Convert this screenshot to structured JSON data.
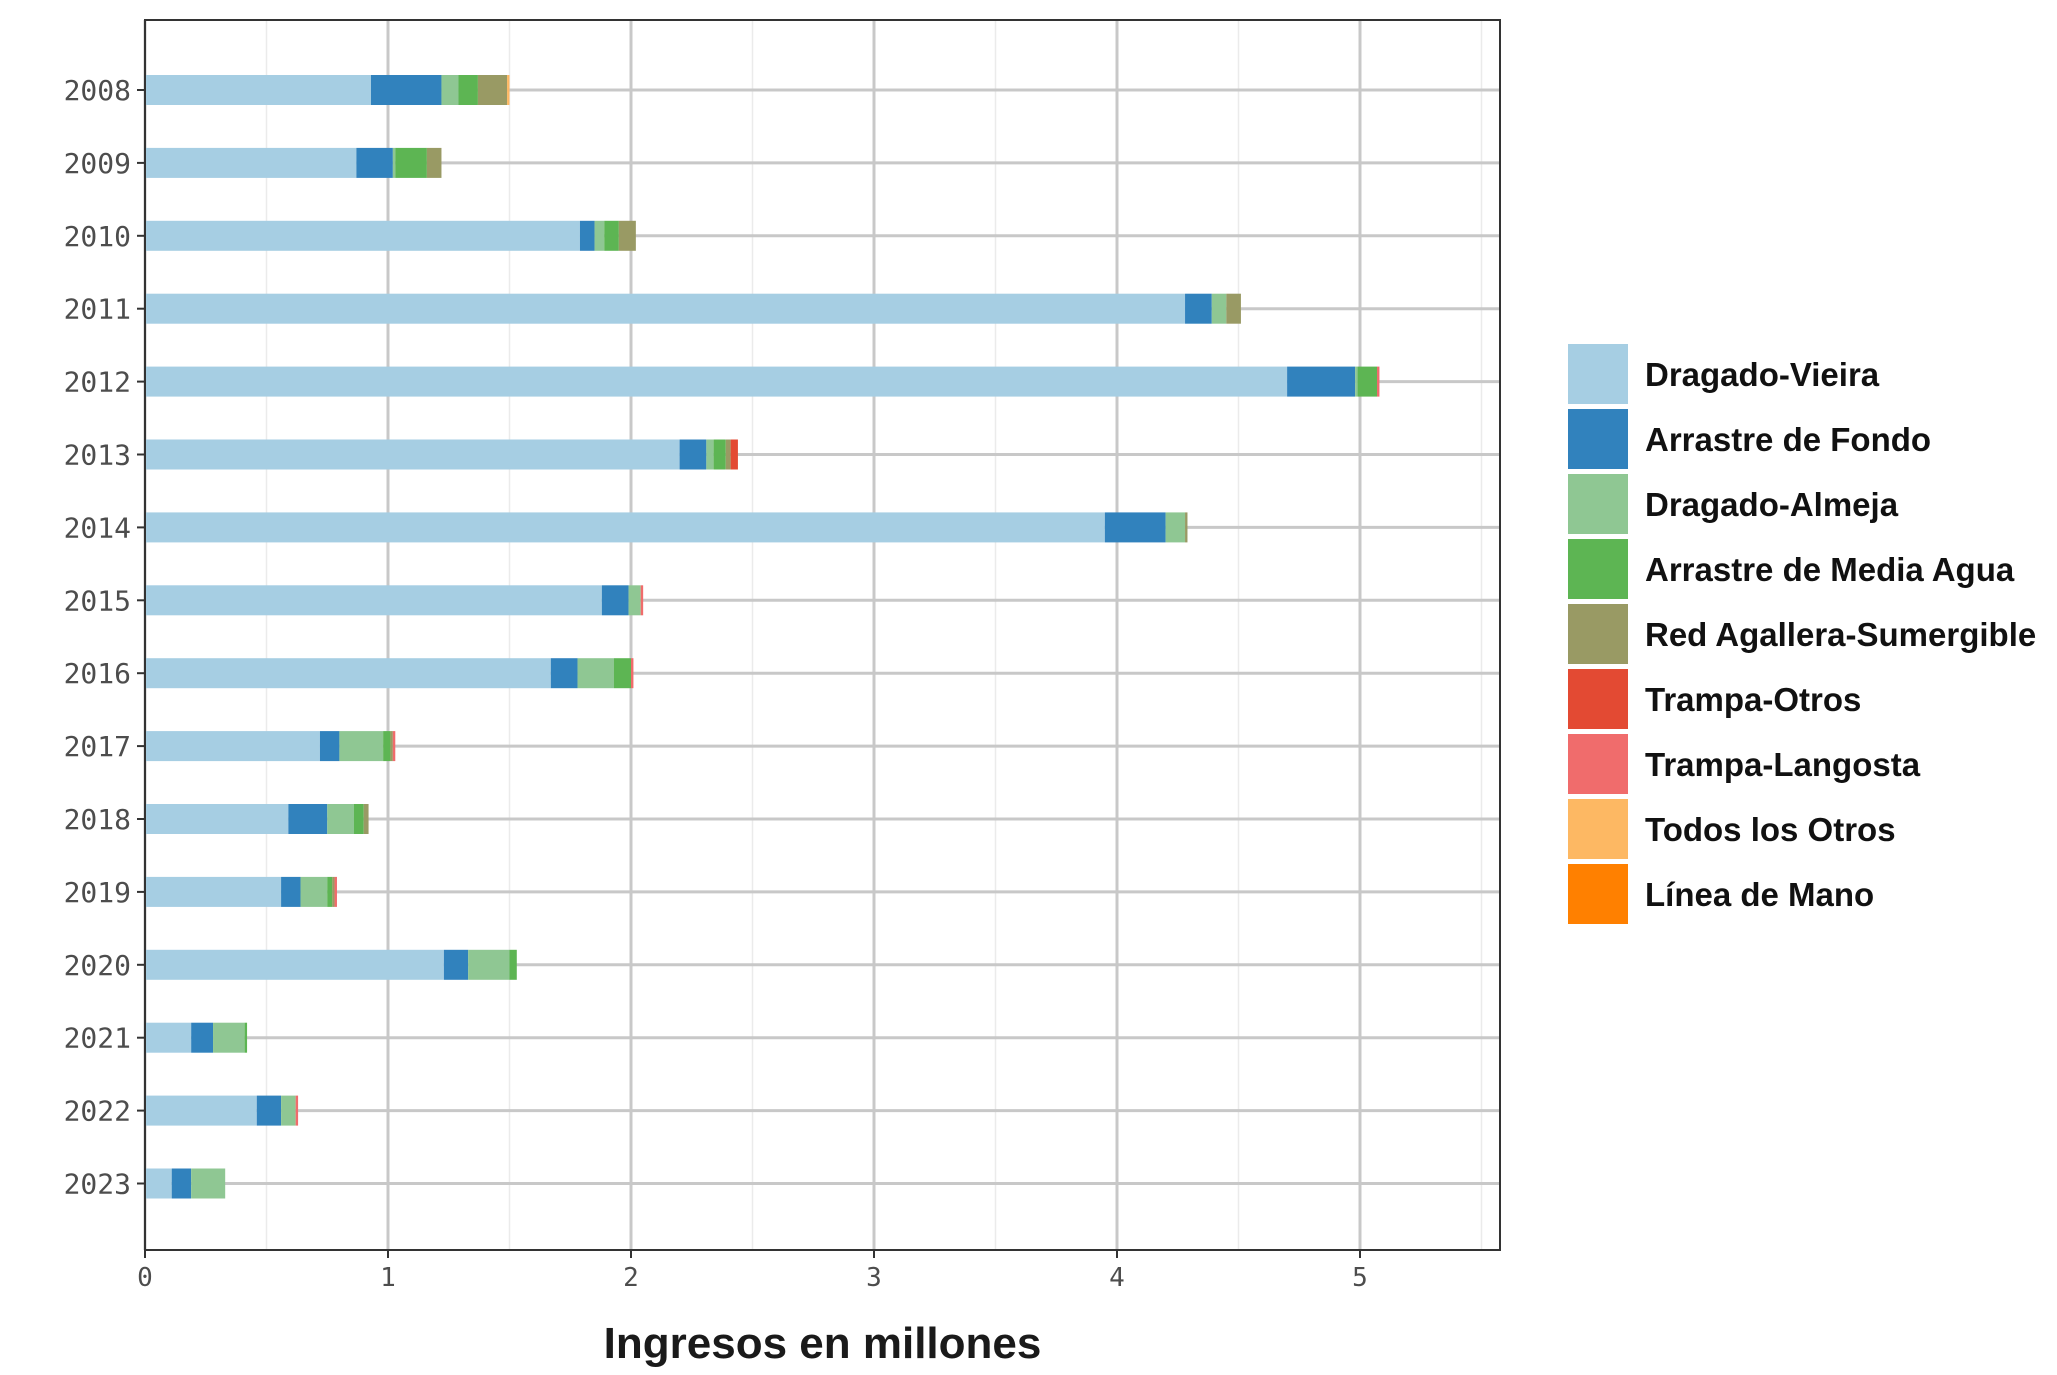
{
  "chart_data": {
    "type": "bar",
    "orientation": "horizontal",
    "stacked": true,
    "categories": [
      "2008",
      "2009",
      "2010",
      "2011",
      "2012",
      "2013",
      "2014",
      "2015",
      "2016",
      "2017",
      "2018",
      "2019",
      "2020",
      "2021",
      "2022",
      "2023"
    ],
    "xlabel": "Ingresos en millones",
    "ylabel": "",
    "xlim": [
      0,
      5.55
    ],
    "xticks": [
      "0",
      "1",
      "2",
      "3",
      "4",
      "5"
    ],
    "grid": true,
    "legend_position": "right",
    "series": [
      {
        "name": "Dragado-Vieira",
        "color": "#a6cee3",
        "values": [
          0.93,
          0.87,
          1.79,
          4.28,
          4.7,
          2.2,
          3.95,
          1.88,
          1.67,
          0.72,
          0.59,
          0.56,
          1.23,
          0.19,
          0.46,
          0.11
        ]
      },
      {
        "name": "Arrastre de Fondo",
        "color": "#3182bd",
        "values": [
          0.29,
          0.15,
          0.06,
          0.11,
          0.28,
          0.11,
          0.25,
          0.11,
          0.11,
          0.08,
          0.16,
          0.08,
          0.1,
          0.09,
          0.1,
          0.08
        ]
      },
      {
        "name": "Dragado-Almeja",
        "color": "#8fc793",
        "values": [
          0.07,
          0.01,
          0.04,
          0.06,
          0.01,
          0.03,
          0.08,
          0.05,
          0.15,
          0.18,
          0.11,
          0.11,
          0.17,
          0.13,
          0.06,
          0.14
        ]
      },
      {
        "name": "Arrastre de Media Agua",
        "color": "#5db553",
        "values": [
          0.08,
          0.13,
          0.06,
          0.0,
          0.08,
          0.05,
          0.0,
          0.0,
          0.07,
          0.03,
          0.04,
          0.02,
          0.03,
          0.01,
          0.0,
          0.0
        ]
      },
      {
        "name": "Red Agallera-Sumergible",
        "color": "#999a64",
        "values": [
          0.12,
          0.06,
          0.07,
          0.06,
          0.0,
          0.02,
          0.01,
          0.0,
          0.0,
          0.01,
          0.02,
          0.01,
          0.0,
          0.0,
          0.0,
          0.0
        ]
      },
      {
        "name": "Trampa-Otros",
        "color": "#e34a33",
        "values": [
          0.0,
          0.0,
          0.0,
          0.0,
          0.0,
          0.03,
          0.0,
          0.0,
          0.0,
          0.0,
          0.0,
          0.0,
          0.0,
          0.0,
          0.0,
          0.0
        ]
      },
      {
        "name": "Trampa-Langosta",
        "color": "#f06c6c",
        "values": [
          0.0,
          0.0,
          0.0,
          0.0,
          0.01,
          0.0,
          0.0,
          0.01,
          0.01,
          0.01,
          0.0,
          0.01,
          0.0,
          0.0,
          0.01,
          0.0
        ]
      },
      {
        "name": "Todos los Otros",
        "color": "#fdb863",
        "values": [
          0.01,
          0.0,
          0.0,
          0.0,
          0.0,
          0.0,
          0.0,
          0.0,
          0.0,
          0.0,
          0.0,
          0.0,
          0.0,
          0.0,
          0.0,
          0.0
        ]
      },
      {
        "name": "Línea de Mano",
        "color": "#ff8000",
        "values": [
          0.0,
          0.0,
          0.0,
          0.0,
          0.0,
          0.0,
          0.0,
          0.0,
          0.0,
          0.0,
          0.0,
          0.0,
          0.0,
          0.0,
          0.0,
          0.0
        ]
      }
    ]
  }
}
